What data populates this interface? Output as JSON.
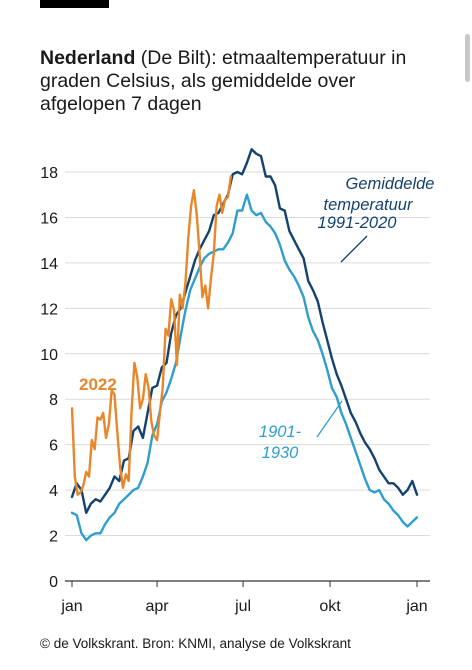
{
  "title": {
    "bold": "Nederland",
    "rest": " (De Bilt): etmaaltemperatuur in graden Celsius, als gemiddelde over afgelopen 7 dagen"
  },
  "footer": "© de Volkskrant. Bron: KNMI, analyse de Volkskrant",
  "chart_data": {
    "type": "line",
    "xlabel": "",
    "ylabel": "",
    "xlim": [
      0,
      365
    ],
    "ylim": [
      0,
      19
    ],
    "x_ticks": [
      {
        "label": "jan",
        "day": 0
      },
      {
        "label": "apr",
        "day": 90
      },
      {
        "label": "jul",
        "day": 181
      },
      {
        "label": "okt",
        "day": 273
      },
      {
        "label": "jan",
        "day": 365
      }
    ],
    "y_ticks": [
      0,
      2,
      4,
      6,
      8,
      10,
      12,
      14,
      16,
      18
    ],
    "grid": "horizontal",
    "colors": {
      "normal_1991_2020": "#14426e",
      "normal_1901_1930": "#2e9fcc",
      "year_2022": "#e8872a"
    },
    "series": [
      {
        "name": "Gemiddelde temperatuur 1991-2020",
        "color": "#14426e",
        "x": [
          0,
          5,
          10,
          15,
          20,
          25,
          30,
          35,
          40,
          45,
          50,
          55,
          60,
          65,
          70,
          75,
          80,
          85,
          90,
          95,
          100,
          105,
          110,
          115,
          120,
          125,
          130,
          135,
          140,
          145,
          150,
          155,
          160,
          165,
          170,
          175,
          180,
          185,
          190,
          195,
          200,
          205,
          210,
          215,
          220,
          225,
          230,
          235,
          240,
          245,
          250,
          255,
          260,
          265,
          270,
          275,
          280,
          285,
          290,
          295,
          300,
          305,
          310,
          315,
          320,
          325,
          330,
          335,
          340,
          345,
          350,
          355,
          360,
          365
        ],
        "values": [
          3.7,
          4.3,
          4.0,
          3.0,
          3.4,
          3.6,
          3.5,
          3.8,
          4.1,
          4.6,
          4.4,
          5.3,
          5.4,
          6.6,
          6.8,
          6.3,
          7.4,
          8.5,
          8.6,
          9.4,
          9.6,
          10.9,
          11.7,
          12.0,
          12.7,
          13.4,
          14.1,
          14.6,
          15.0,
          15.4,
          16.1,
          16.2,
          16.6,
          17.0,
          17.9,
          18.0,
          17.9,
          18.4,
          19.0,
          18.8,
          18.7,
          17.8,
          17.8,
          17.4,
          16.4,
          16.3,
          15.4,
          15.0,
          14.6,
          14.2,
          13.2,
          12.8,
          12.3,
          11.4,
          10.6,
          9.8,
          9.1,
          8.6,
          8.0,
          7.4,
          7.0,
          6.5,
          6.1,
          5.8,
          5.4,
          4.9,
          4.6,
          4.3,
          4.3,
          4.1,
          3.8,
          4.0,
          4.4,
          3.8
        ]
      },
      {
        "name": "1901-1930",
        "color": "#2e9fcc",
        "x": [
          0,
          5,
          10,
          15,
          20,
          25,
          30,
          35,
          40,
          45,
          50,
          55,
          60,
          65,
          70,
          75,
          80,
          85,
          90,
          95,
          100,
          105,
          110,
          115,
          120,
          125,
          130,
          135,
          140,
          145,
          150,
          155,
          160,
          165,
          170,
          175,
          180,
          185,
          190,
          195,
          200,
          205,
          210,
          215,
          220,
          225,
          230,
          235,
          240,
          245,
          250,
          255,
          260,
          265,
          270,
          275,
          280,
          285,
          290,
          295,
          300,
          305,
          310,
          315,
          320,
          325,
          330,
          335,
          340,
          345,
          350,
          355,
          360,
          365
        ],
        "values": [
          3.0,
          2.9,
          2.1,
          1.8,
          2.0,
          2.1,
          2.1,
          2.5,
          2.8,
          3.0,
          3.4,
          3.6,
          3.8,
          4.0,
          4.1,
          4.6,
          5.2,
          6.4,
          6.9,
          7.9,
          8.3,
          8.9,
          9.6,
          10.8,
          11.9,
          12.8,
          13.3,
          13.8,
          14.2,
          14.4,
          14.5,
          14.6,
          14.6,
          14.9,
          15.3,
          16.3,
          16.3,
          17.0,
          16.3,
          16.1,
          16.2,
          15.8,
          15.6,
          15.3,
          14.8,
          14.1,
          13.7,
          13.4,
          13.0,
          12.5,
          11.6,
          11.0,
          10.6,
          10.0,
          9.3,
          8.5,
          8.1,
          7.4,
          6.9,
          6.3,
          5.7,
          5.1,
          4.5,
          4.0,
          3.9,
          4.0,
          3.6,
          3.4,
          3.1,
          2.9,
          2.6,
          2.4,
          2.6,
          2.8
        ]
      },
      {
        "name": "2022",
        "color": "#e8872a",
        "x": [
          0,
          3,
          6,
          9,
          12,
          15,
          18,
          21,
          24,
          27,
          30,
          33,
          36,
          39,
          42,
          45,
          48,
          51,
          54,
          57,
          60,
          63,
          66,
          69,
          72,
          75,
          78,
          81,
          84,
          87,
          90,
          93,
          96,
          99,
          102,
          105,
          108,
          111,
          114,
          117,
          120,
          123,
          126,
          129,
          132,
          135,
          138,
          141,
          144,
          147,
          150,
          153,
          156,
          159,
          162,
          165,
          168
        ],
        "values": [
          7.6,
          4.6,
          3.8,
          3.9,
          4.2,
          4.8,
          4.6,
          6.2,
          5.8,
          7.2,
          7.1,
          7.4,
          6.3,
          6.9,
          8.4,
          8.2,
          6.5,
          5.0,
          4.1,
          4.7,
          4.4,
          7.4,
          9.6,
          9.0,
          7.6,
          8.0,
          9.1,
          8.5,
          7.0,
          6.4,
          6.2,
          7.4,
          8.5,
          11.1,
          10.8,
          12.4,
          11.9,
          9.5,
          12.6,
          12.0,
          13.1,
          15.1,
          16.5,
          17.2,
          16.1,
          14.4,
          12.5,
          13.0,
          12.0,
          13.3,
          14.4,
          16.5,
          17.0,
          16.2,
          16.8,
          16.9,
          17.8
        ]
      }
    ],
    "annotations": [
      "Gemiddelde",
      "temperatuur",
      "1991-2020",
      "1901-",
      "1930",
      "2022"
    ]
  }
}
